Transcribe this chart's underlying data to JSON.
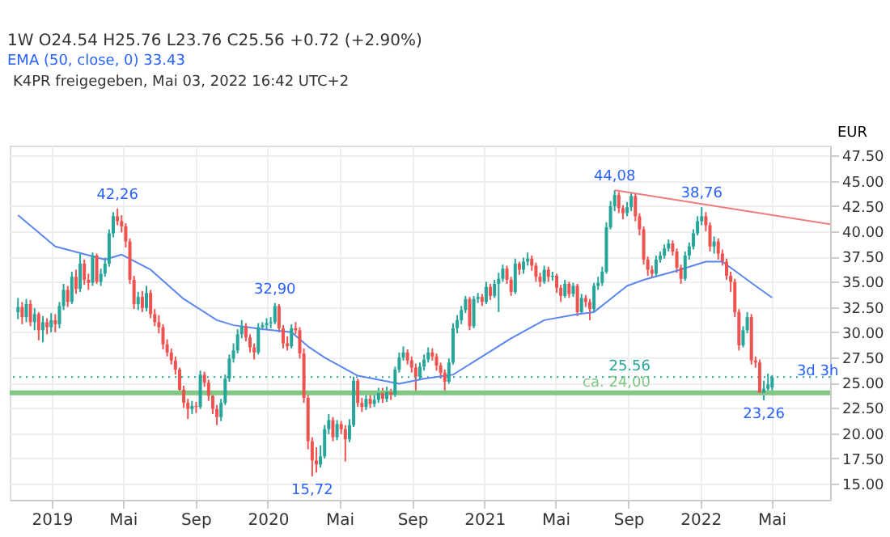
{
  "chart_data": {
    "type": "candlestick",
    "title": "1W  O24.54  H25.76  L23.76  C25.56  +0.72 (+2.90%)",
    "subtitle": "EMA (50, close, 0)  33.43",
    "ylabel": "EUR",
    "x": [
      "2018-11-05",
      "2018-11-12",
      "2018-11-19",
      "2018-11-26",
      "2018-12-03",
      "2018-12-10",
      "2018-12-17",
      "2018-12-24",
      "2018-12-31",
      "2019-01-07",
      "2019-01-14",
      "2019-01-21",
      "2019-01-28",
      "2019-02-04",
      "2019-02-11",
      "2019-02-18",
      "2019-02-25",
      "2019-03-04",
      "2019-03-11",
      "2019-03-18",
      "2019-03-25",
      "2019-04-01",
      "2019-04-08",
      "2019-04-15",
      "2019-04-22",
      "2019-04-29",
      "2019-05-06",
      "2019-05-13",
      "2019-05-20",
      "2019-05-27",
      "2019-06-03",
      "2019-06-10",
      "2019-06-17",
      "2019-06-24",
      "2019-07-01",
      "2019-07-08",
      "2019-07-15",
      "2019-07-22",
      "2019-07-29",
      "2019-08-05",
      "2019-08-12",
      "2019-08-19",
      "2019-08-26",
      "2019-09-02",
      "2019-09-09",
      "2019-09-16",
      "2019-09-23",
      "2019-09-30",
      "2019-10-07",
      "2019-10-14",
      "2019-10-21",
      "2019-10-28",
      "2019-11-04",
      "2019-11-11",
      "2019-11-18",
      "2019-11-25",
      "2019-12-02",
      "2019-12-09",
      "2019-12-16",
      "2019-12-23",
      "2019-12-30",
      "2020-01-06",
      "2020-01-13",
      "2020-01-20",
      "2020-01-27",
      "2020-02-03",
      "2020-02-10",
      "2020-02-17",
      "2020-02-24",
      "2020-03-02",
      "2020-03-09",
      "2020-03-16",
      "2020-03-23",
      "2020-03-30",
      "2020-04-06",
      "2020-04-13",
      "2020-04-20",
      "2020-04-27",
      "2020-05-04",
      "2020-05-11",
      "2020-05-18",
      "2020-05-25",
      "2020-06-01",
      "2020-06-08",
      "2020-06-15",
      "2020-06-22",
      "2020-06-29",
      "2020-07-06",
      "2020-07-13",
      "2020-07-20",
      "2020-07-27",
      "2020-08-03",
      "2020-08-10",
      "2020-08-17",
      "2020-08-24",
      "2020-08-31",
      "2020-09-07",
      "2020-09-14",
      "2020-09-21",
      "2020-09-28",
      "2020-10-05",
      "2020-10-12",
      "2020-10-19",
      "2020-10-26",
      "2020-11-02",
      "2020-11-09",
      "2020-11-16",
      "2020-11-23",
      "2020-11-30",
      "2020-12-07",
      "2020-12-14",
      "2020-12-21",
      "2020-12-28",
      "2021-01-04",
      "2021-01-11",
      "2021-01-18",
      "2021-01-25",
      "2021-02-01",
      "2021-02-08",
      "2021-02-15",
      "2021-02-22",
      "2021-03-01",
      "2021-03-08",
      "2021-03-15",
      "2021-03-22",
      "2021-03-29",
      "2021-04-05",
      "2021-04-12",
      "2021-04-19",
      "2021-04-26",
      "2021-05-03",
      "2021-05-10",
      "2021-05-17",
      "2021-05-24",
      "2021-05-31",
      "2021-06-07",
      "2021-06-14",
      "2021-06-21",
      "2021-06-28",
      "2021-07-05",
      "2021-07-12",
      "2021-07-19",
      "2021-07-26",
      "2021-08-02",
      "2021-08-09",
      "2021-08-16",
      "2021-08-23",
      "2021-08-30",
      "2021-09-06",
      "2021-09-13",
      "2021-09-20",
      "2021-09-27",
      "2021-10-04",
      "2021-10-11",
      "2021-10-18",
      "2021-10-25",
      "2021-11-01",
      "2021-11-08",
      "2021-11-15",
      "2021-11-22",
      "2021-11-29",
      "2021-12-06",
      "2021-12-13",
      "2021-12-20",
      "2021-12-27",
      "2022-01-03",
      "2022-01-10",
      "2022-01-17",
      "2022-01-24",
      "2022-01-31",
      "2022-02-07",
      "2022-02-14",
      "2022-02-21",
      "2022-02-28",
      "2022-03-07",
      "2022-03-14",
      "2022-03-21",
      "2022-03-28",
      "2022-04-04",
      "2022-04-11",
      "2022-04-18",
      "2022-04-25",
      "2022-05-02"
    ],
    "ohlc": [
      [
        32.0,
        33.4,
        31.3,
        32.5
      ],
      [
        32.5,
        33.0,
        30.8,
        31.5
      ],
      [
        31.5,
        33.3,
        31.0,
        32.8
      ],
      [
        32.8,
        33.2,
        30.6,
        31.0
      ],
      [
        31.0,
        32.4,
        30.2,
        31.8
      ],
      [
        31.8,
        32.0,
        29.2,
        30.2
      ],
      [
        30.2,
        31.6,
        29.0,
        31.0
      ],
      [
        31.0,
        31.4,
        29.8,
        30.5
      ],
      [
        30.5,
        31.9,
        30.0,
        31.2
      ],
      [
        31.2,
        31.8,
        30.0,
        30.8
      ],
      [
        30.8,
        33.0,
        30.4,
        32.6
      ],
      [
        32.6,
        34.8,
        32.2,
        34.2
      ],
      [
        34.2,
        34.6,
        32.5,
        33.0
      ],
      [
        33.0,
        36.0,
        32.8,
        35.5
      ],
      [
        35.5,
        36.2,
        33.8,
        34.3
      ],
      [
        34.3,
        37.8,
        34.0,
        36.8
      ],
      [
        36.8,
        37.2,
        34.7,
        35.2
      ],
      [
        35.2,
        35.8,
        34.2,
        34.9
      ],
      [
        34.9,
        37.9,
        34.6,
        37.6
      ],
      [
        37.6,
        37.8,
        34.8,
        35.0
      ],
      [
        35.0,
        36.3,
        34.6,
        35.8
      ],
      [
        35.8,
        37.4,
        35.5,
        36.8
      ],
      [
        36.8,
        40.2,
        36.5,
        39.8
      ],
      [
        39.8,
        41.9,
        39.4,
        41.5
      ],
      [
        41.5,
        42.26,
        40.6,
        41.0
      ],
      [
        41.0,
        41.6,
        39.9,
        40.5
      ],
      [
        40.5,
        40.8,
        38.4,
        39.0
      ],
      [
        39.0,
        39.3,
        34.8,
        35.2
      ],
      [
        35.2,
        35.6,
        32.3,
        32.8
      ],
      [
        32.8,
        34.0,
        32.2,
        33.5
      ],
      [
        33.5,
        34.1,
        32.0,
        32.4
      ],
      [
        32.4,
        34.6,
        32.1,
        33.9
      ],
      [
        33.9,
        34.2,
        31.4,
        31.8
      ],
      [
        31.8,
        32.3,
        30.6,
        31.0
      ],
      [
        31.0,
        31.7,
        29.9,
        30.5
      ],
      [
        30.5,
        30.8,
        28.3,
        28.8
      ],
      [
        28.8,
        29.3,
        27.6,
        28.0
      ],
      [
        28.0,
        28.4,
        26.8,
        27.2
      ],
      [
        27.2,
        27.6,
        25.8,
        26.3
      ],
      [
        26.3,
        26.5,
        23.8,
        24.3
      ],
      [
        24.3,
        24.7,
        22.5,
        23.0
      ],
      [
        23.0,
        23.4,
        21.4,
        22.4
      ],
      [
        22.4,
        23.2,
        21.9,
        22.7
      ],
      [
        22.7,
        23.1,
        22.0,
        22.6
      ],
      [
        22.6,
        26.2,
        22.4,
        25.8
      ],
      [
        25.8,
        26.1,
        24.6,
        25.0
      ],
      [
        25.0,
        25.3,
        23.2,
        23.7
      ],
      [
        23.7,
        24.0,
        21.9,
        22.4
      ],
      [
        22.4,
        22.8,
        20.8,
        21.6
      ],
      [
        21.6,
        23.4,
        21.2,
        23.0
      ],
      [
        23.0,
        25.8,
        22.8,
        25.4
      ],
      [
        25.4,
        27.8,
        25.1,
        27.4
      ],
      [
        27.4,
        28.9,
        27.0,
        28.2
      ],
      [
        28.2,
        30.3,
        27.9,
        29.8
      ],
      [
        29.8,
        31.2,
        29.4,
        30.6
      ],
      [
        30.6,
        30.9,
        29.1,
        29.5
      ],
      [
        29.5,
        29.8,
        28.0,
        28.5
      ],
      [
        28.5,
        28.9,
        27.3,
        28.0
      ],
      [
        28.0,
        30.9,
        27.8,
        30.5
      ],
      [
        30.5,
        31.0,
        30.2,
        30.7
      ],
      [
        30.7,
        31.4,
        30.3,
        30.9
      ],
      [
        30.9,
        31.5,
        30.4,
        31.0
      ],
      [
        31.0,
        32.9,
        30.8,
        32.6
      ],
      [
        32.6,
        32.8,
        30.0,
        30.4
      ],
      [
        30.4,
        30.7,
        28.4,
        28.9
      ],
      [
        28.9,
        29.6,
        28.2,
        28.6
      ],
      [
        28.6,
        30.8,
        28.4,
        30.4
      ],
      [
        30.4,
        31.0,
        29.8,
        30.2
      ],
      [
        30.2,
        30.5,
        27.4,
        27.9
      ],
      [
        27.9,
        28.4,
        23.0,
        23.5
      ],
      [
        23.5,
        23.9,
        18.4,
        19.2
      ],
      [
        19.2,
        19.6,
        15.72,
        17.3
      ],
      [
        17.3,
        18.6,
        16.1,
        16.9
      ],
      [
        16.9,
        18.8,
        16.6,
        17.7
      ],
      [
        17.7,
        20.8,
        17.5,
        20.4
      ],
      [
        20.4,
        21.9,
        19.9,
        21.3
      ],
      [
        21.3,
        21.6,
        19.2,
        19.6
      ],
      [
        19.6,
        21.3,
        19.3,
        20.9
      ],
      [
        20.9,
        21.2,
        19.9,
        20.4
      ],
      [
        20.4,
        20.8,
        17.2,
        19.4
      ],
      [
        19.4,
        21.4,
        19.1,
        20.8
      ],
      [
        20.8,
        25.6,
        20.6,
        25.2
      ],
      [
        25.2,
        25.4,
        22.6,
        23.0
      ],
      [
        23.0,
        23.5,
        22.1,
        22.6
      ],
      [
        22.6,
        24.0,
        22.3,
        23.4
      ],
      [
        23.4,
        23.8,
        22.5,
        22.9
      ],
      [
        22.9,
        23.9,
        22.6,
        23.3
      ],
      [
        23.3,
        24.5,
        23.0,
        24.0
      ],
      [
        24.0,
        24.5,
        23.0,
        23.4
      ],
      [
        23.4,
        24.6,
        23.1,
        24.1
      ],
      [
        24.1,
        24.4,
        23.3,
        23.8
      ],
      [
        23.8,
        26.6,
        23.6,
        26.3
      ],
      [
        26.3,
        28.0,
        26.0,
        27.5
      ],
      [
        27.5,
        28.6,
        27.2,
        28.0
      ],
      [
        28.0,
        28.3,
        26.8,
        27.2
      ],
      [
        27.2,
        27.6,
        26.0,
        26.5
      ],
      [
        26.5,
        26.9,
        24.2,
        25.6
      ],
      [
        25.6,
        27.0,
        25.3,
        26.6
      ],
      [
        26.6,
        27.8,
        26.2,
        27.3
      ],
      [
        27.3,
        28.5,
        27.0,
        28.0
      ],
      [
        28.0,
        28.4,
        27.2,
        27.6
      ],
      [
        27.6,
        27.9,
        26.2,
        26.7
      ],
      [
        26.7,
        27.0,
        25.4,
        26.0
      ],
      [
        26.0,
        26.3,
        24.0,
        25.1
      ],
      [
        25.1,
        27.4,
        24.9,
        27.0
      ],
      [
        27.0,
        30.9,
        26.8,
        30.4
      ],
      [
        30.4,
        31.7,
        29.9,
        31.2
      ],
      [
        31.2,
        32.6,
        30.8,
        32.2
      ],
      [
        32.2,
        33.6,
        31.9,
        33.3
      ],
      [
        33.3,
        33.5,
        30.2,
        30.6
      ],
      [
        30.6,
        33.6,
        30.4,
        33.3
      ],
      [
        33.3,
        33.9,
        32.9,
        33.5
      ],
      [
        33.5,
        33.8,
        32.6,
        33.0
      ],
      [
        33.0,
        35.0,
        32.8,
        34.5
      ],
      [
        34.5,
        34.8,
        33.2,
        33.6
      ],
      [
        33.6,
        35.2,
        33.4,
        34.8
      ],
      [
        34.8,
        35.9,
        32.0,
        35.3
      ],
      [
        35.3,
        36.7,
        35.0,
        36.3
      ],
      [
        36.3,
        36.6,
        34.8,
        35.2
      ],
      [
        35.2,
        35.5,
        33.6,
        34.0
      ],
      [
        34.0,
        37.3,
        33.8,
        36.8
      ],
      [
        36.8,
        37.0,
        35.7,
        36.2
      ],
      [
        36.2,
        37.4,
        35.8,
        37.0
      ],
      [
        37.0,
        37.9,
        36.6,
        37.3
      ],
      [
        37.3,
        37.6,
        36.1,
        36.6
      ],
      [
        36.6,
        36.9,
        35.0,
        35.5
      ],
      [
        35.5,
        35.9,
        34.5,
        35.0
      ],
      [
        35.0,
        36.6,
        34.8,
        36.2
      ],
      [
        36.2,
        36.5,
        35.0,
        35.5
      ],
      [
        35.5,
        36.0,
        35.1,
        35.6
      ],
      [
        35.6,
        35.8,
        33.9,
        34.4
      ],
      [
        34.4,
        34.7,
        33.0,
        33.6
      ],
      [
        33.6,
        35.2,
        33.4,
        34.8
      ],
      [
        34.8,
        35.0,
        33.4,
        33.8
      ],
      [
        33.8,
        34.9,
        33.5,
        34.6
      ],
      [
        34.6,
        34.8,
        31.6,
        32.0
      ],
      [
        32.0,
        33.8,
        31.8,
        33.4
      ],
      [
        33.4,
        33.7,
        32.5,
        33.0
      ],
      [
        33.0,
        33.3,
        31.2,
        32.3
      ],
      [
        32.3,
        34.9,
        32.0,
        34.6
      ],
      [
        34.6,
        35.5,
        34.2,
        34.9
      ],
      [
        34.9,
        36.5,
        34.6,
        36.0
      ],
      [
        36.0,
        40.9,
        35.8,
        40.4
      ],
      [
        40.4,
        43.0,
        40.2,
        42.5
      ],
      [
        42.5,
        44.08,
        42.0,
        43.6
      ],
      [
        43.6,
        43.9,
        41.8,
        42.3
      ],
      [
        42.3,
        42.6,
        41.2,
        41.8
      ],
      [
        41.8,
        42.9,
        41.5,
        42.4
      ],
      [
        42.4,
        43.8,
        42.0,
        43.5
      ],
      [
        43.5,
        43.7,
        41.0,
        41.5
      ],
      [
        41.5,
        41.8,
        39.6,
        40.2
      ],
      [
        40.2,
        40.5,
        36.7,
        37.2
      ],
      [
        37.2,
        37.5,
        35.6,
        36.2
      ],
      [
        36.2,
        36.6,
        35.4,
        35.8
      ],
      [
        35.8,
        37.6,
        35.6,
        37.2
      ],
      [
        37.2,
        38.0,
        36.9,
        37.6
      ],
      [
        37.6,
        38.7,
        37.3,
        38.3
      ],
      [
        38.3,
        39.2,
        38.0,
        38.8
      ],
      [
        38.8,
        39.1,
        37.6,
        38.0
      ],
      [
        38.0,
        38.3,
        35.9,
        36.4
      ],
      [
        36.4,
        36.7,
        34.8,
        35.3
      ],
      [
        35.3,
        38.0,
        35.1,
        37.6
      ],
      [
        37.6,
        38.9,
        37.2,
        38.5
      ],
      [
        38.5,
        40.2,
        38.2,
        39.8
      ],
      [
        39.8,
        41.5,
        39.6,
        41.0
      ],
      [
        41.0,
        42.4,
        40.6,
        41.5
      ],
      [
        41.5,
        41.9,
        40.0,
        40.6
      ],
      [
        40.6,
        40.9,
        38.0,
        38.5
      ],
      [
        38.5,
        39.5,
        37.8,
        39.0
      ],
      [
        39.0,
        39.3,
        37.2,
        37.8
      ],
      [
        37.8,
        38.2,
        36.6,
        37.0
      ],
      [
        37.0,
        37.3,
        35.2,
        35.6
      ],
      [
        35.6,
        36.0,
        34.0,
        35.0
      ],
      [
        35.0,
        35.3,
        31.5,
        32.0
      ],
      [
        32.0,
        32.3,
        28.2,
        28.7
      ],
      [
        28.7,
        30.6,
        28.5,
        30.2
      ],
      [
        30.2,
        32.0,
        29.9,
        31.5
      ],
      [
        31.5,
        31.8,
        26.8,
        27.2
      ],
      [
        27.2,
        27.6,
        26.5,
        27.0
      ],
      [
        27.0,
        27.3,
        23.8,
        24.0
      ],
      [
        24.0,
        25.2,
        23.26,
        24.4
      ],
      [
        24.4,
        25.9,
        24.1,
        24.84
      ],
      [
        24.54,
        25.76,
        23.76,
        25.56
      ]
    ],
    "series": [
      {
        "type": "line",
        "color": "#5b86f0",
        "x": [
          "2018-11-05",
          "2019-01-07",
          "2019-04-01",
          "2019-04-29",
          "2019-06-17",
          "2019-08-12",
          "2019-10-07",
          "2019-11-04",
          "2019-12-23",
          "2020-02-10",
          "2020-03-09",
          "2020-04-06",
          "2020-06-01",
          "2020-08-10",
          "2020-09-21",
          "2020-11-09",
          "2020-12-28",
          "2021-02-15",
          "2021-04-12",
          "2021-06-07",
          "2021-07-05",
          "2021-08-02",
          "2021-08-30",
          "2021-09-27",
          "2021-11-22",
          "2022-01-10",
          "2022-02-07",
          "2022-04-04",
          "2022-05-02"
        ],
        "values": [
          41.6,
          38.5,
          37.2,
          37.7,
          36.2,
          33.3,
          31.2,
          30.7,
          30.3,
          30.0,
          28.6,
          27.5,
          25.7,
          24.9,
          25.4,
          25.8,
          27.6,
          29.4,
          31.2,
          31.8,
          32.0,
          33.3,
          34.6,
          35.2,
          36.1,
          37.0,
          37.0,
          34.6,
          33.43
        ]
      },
      {
        "type": "line",
        "color": "#f07b7b",
        "x": [
          "2021-08-09",
          "2022-08-08"
        ],
        "values": [
          44.08,
          40.7
        ]
      }
    ],
    "ref_lines": [
      {
        "axis": "y",
        "value": 24.0,
        "label": "ca. 24,00",
        "color": "#81c784",
        "line_style": "solid"
      },
      {
        "axis": "y",
        "value": 25.56,
        "label": "25.56",
        "color": "#26a69a",
        "line_style": "dotted"
      }
    ],
    "annotations": [
      "K4PR freigegeben, Mai 03, 2022 16:42 UTC+2",
      {
        "text": "42,26",
        "x": "2019-04-22",
        "y": 42.26
      },
      {
        "text": "32,90",
        "x": "2020-01-13",
        "y": 32.9
      },
      {
        "text": "15,72",
        "x": "2020-03-16",
        "y": 15.72
      },
      {
        "text": "44,08",
        "x": "2021-08-09",
        "y": 44.08
      },
      {
        "text": "38,76",
        "x": "2022-01-03",
        "y": 42.4
      },
      {
        "text": "23,26",
        "x": "2022-04-18",
        "y": 23.26
      },
      {
        "text": "3d 3h",
        "x": "2022-07-18",
        "y": 24.8
      }
    ],
    "xlim": [
      "2018-10-22",
      "2022-08-08"
    ],
    "xticks": [
      {
        "value": "2019-01-01",
        "label": "2019"
      },
      {
        "value": "2019-05-01",
        "label": "Mai"
      },
      {
        "value": "2019-09-01",
        "label": "Sep"
      },
      {
        "value": "2020-01-01",
        "label": "2020"
      },
      {
        "value": "2020-05-01",
        "label": "Mai"
      },
      {
        "value": "2020-09-01",
        "label": "Sep"
      },
      {
        "value": "2021-01-01",
        "label": "2021"
      },
      {
        "value": "2021-05-01",
        "label": "Mai"
      },
      {
        "value": "2021-09-01",
        "label": "Sep"
      },
      {
        "value": "2022-01-01",
        "label": "2022"
      },
      {
        "value": "2022-05-01",
        "label": "Mai"
      }
    ],
    "ylim": [
      13.4,
      48.5
    ],
    "yticks": [
      {
        "value": 15,
        "label": "15.00"
      },
      {
        "value": 17.5,
        "label": "17.50"
      },
      {
        "value": 20,
        "label": "20.00"
      },
      {
        "value": 22.5,
        "label": "22.50"
      },
      {
        "value": 25,
        "label": "25.00"
      },
      {
        "value": 27.5,
        "label": "27.50"
      },
      {
        "value": 30,
        "label": "30.00"
      },
      {
        "value": 32.5,
        "label": "32.50"
      },
      {
        "value": 35,
        "label": "35.00"
      },
      {
        "value": 37.5,
        "label": "37.50"
      },
      {
        "value": 40,
        "label": "40.00"
      },
      {
        "value": 42.5,
        "label": "42.50"
      },
      {
        "value": 45,
        "label": "45.00"
      },
      {
        "value": 47.5,
        "label": "47.50"
      }
    ],
    "grid": true
  }
}
